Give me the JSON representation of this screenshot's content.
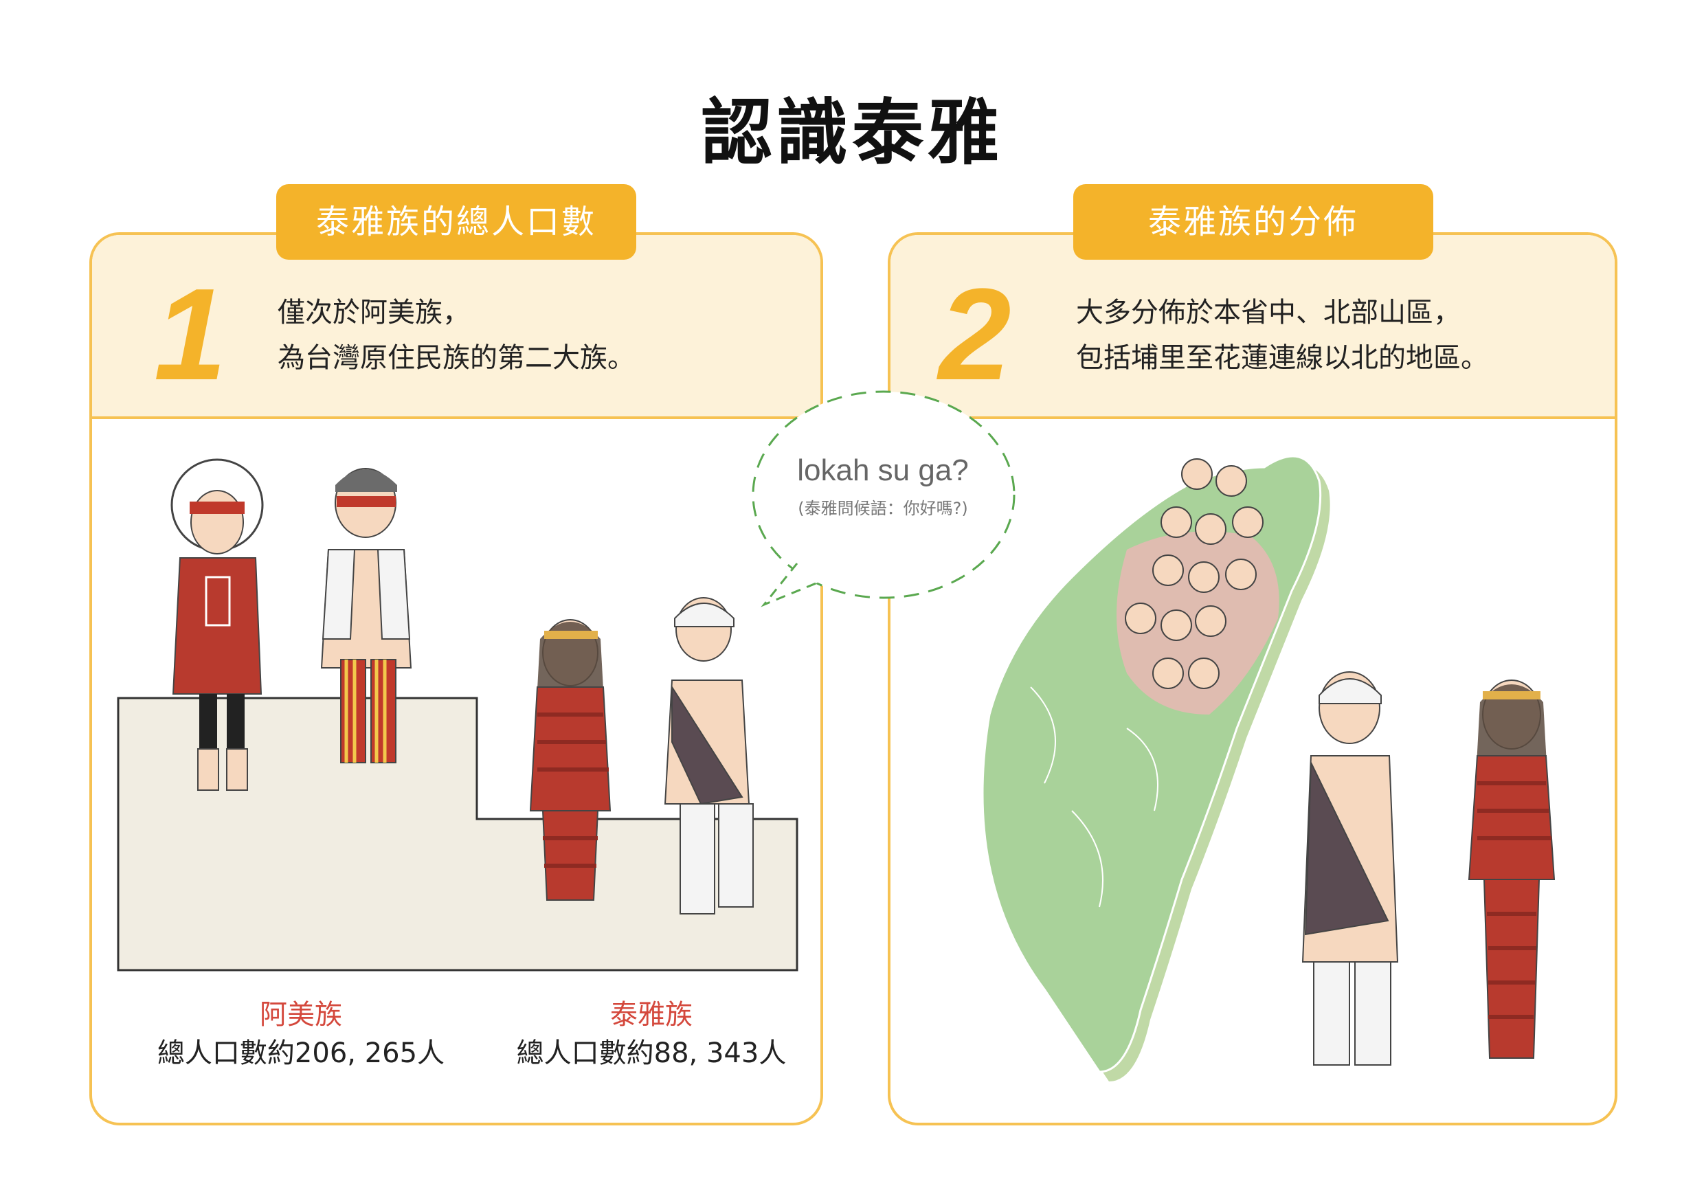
{
  "page": {
    "title": "認識泰雅"
  },
  "section1": {
    "tag": "泰雅族的總人口數",
    "number": "1",
    "lines": [
      "僅次於阿美族，",
      "為台灣原住民族的第二大族。"
    ]
  },
  "section2": {
    "tag": "泰雅族的分佈",
    "number": "2",
    "lines": [
      "大多分佈於本省中、北部山區，",
      "包括埔里至花蓮連線以北的地區。"
    ]
  },
  "speech": {
    "greeting": "lokah su ga?",
    "note": "(泰雅問候語：你好嗎?)"
  },
  "stats": [
    {
      "label": "阿美族",
      "value": "總人口數約206, 265人"
    },
    {
      "label": "泰雅族",
      "value": "總人口數約88, 343人"
    }
  ],
  "colors": {
    "accent": "#f4b32a",
    "panel_border": "#f6c253",
    "header_bg": "#fdf2d9",
    "label_red": "#d4483c",
    "map_green": "#a9d29a",
    "step_bg": "#f1ede2"
  }
}
